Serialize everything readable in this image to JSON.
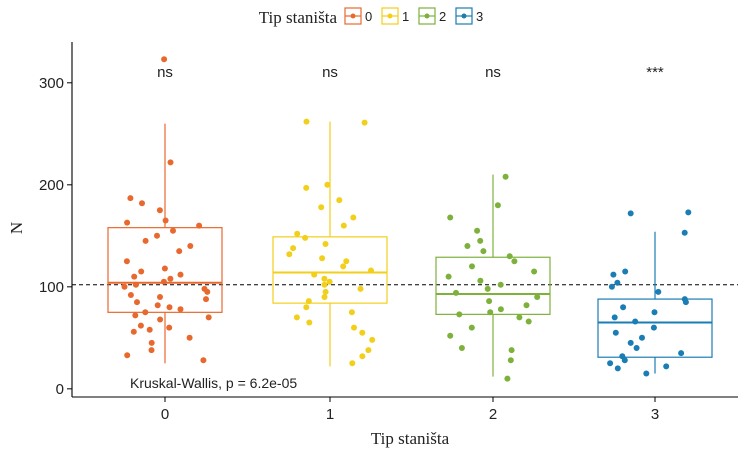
{
  "chart_data": {
    "type": "boxplot",
    "xlabel": "Tip staništa",
    "ylabel": "N",
    "legend": {
      "title": "Tip staništa",
      "position": "top",
      "entries": [
        {
          "label": "0",
          "color": "#E8692E"
        },
        {
          "label": "1",
          "color": "#F2CF1A"
        },
        {
          "label": "2",
          "color": "#7DB13C"
        },
        {
          "label": "3",
          "color": "#1A7DB4"
        }
      ]
    },
    "ylim": [
      -8,
      340
    ],
    "y_ticks": [
      0,
      100,
      200,
      300
    ],
    "reference_line": 102,
    "annotation": "Kruskal-Wallis, p = 6.2e-05",
    "groups": [
      {
        "category": "0",
        "color": "#E8692E",
        "significance": "ns",
        "whisker_low": 25,
        "q1": 75,
        "median": 104,
        "q3": 158,
        "whisker_high": 260,
        "points": [
          323,
          222,
          187,
          182,
          175,
          165,
          163,
          160,
          155,
          150,
          145,
          140,
          135,
          125,
          118,
          115,
          112,
          110,
          108,
          105,
          102,
          100,
          98,
          95,
          92,
          90,
          88,
          85,
          82,
          80,
          78,
          75,
          72,
          70,
          68,
          62,
          60,
          58,
          56,
          50,
          45,
          38,
          33,
          28
        ]
      },
      {
        "category": "1",
        "color": "#F2CF1A",
        "significance": "ns",
        "whisker_low": 22,
        "q1": 84,
        "median": 114,
        "q3": 149,
        "whisker_high": 262,
        "points": [
          262,
          261,
          200,
          197,
          185,
          178,
          168,
          160,
          152,
          148,
          142,
          138,
          132,
          128,
          125,
          120,
          116,
          112,
          108,
          105,
          102,
          98,
          95,
          90,
          86,
          80,
          75,
          70,
          65,
          60,
          55,
          48,
          38,
          32,
          25
        ]
      },
      {
        "category": "2",
        "color": "#7DB13C",
        "significance": "ns",
        "whisker_low": 12,
        "q1": 73,
        "median": 93,
        "q3": 129,
        "whisker_high": 210,
        "points": [
          208,
          180,
          168,
          155,
          145,
          140,
          135,
          130,
          125,
          120,
          115,
          110,
          106,
          102,
          98,
          94,
          90,
          86,
          82,
          78,
          75,
          73,
          70,
          66,
          60,
          52,
          40,
          38,
          28,
          10
        ]
      },
      {
        "category": "3",
        "color": "#1A7DB4",
        "significance": "***",
        "whisker_low": 15,
        "q1": 31,
        "median": 65,
        "q3": 88,
        "whisker_high": 154,
        "points": [
          173,
          172,
          153,
          115,
          112,
          104,
          100,
          95,
          88,
          85,
          80,
          75,
          70,
          66,
          60,
          55,
          50,
          45,
          40,
          35,
          32,
          28,
          25,
          22,
          20,
          15
        ]
      }
    ]
  }
}
